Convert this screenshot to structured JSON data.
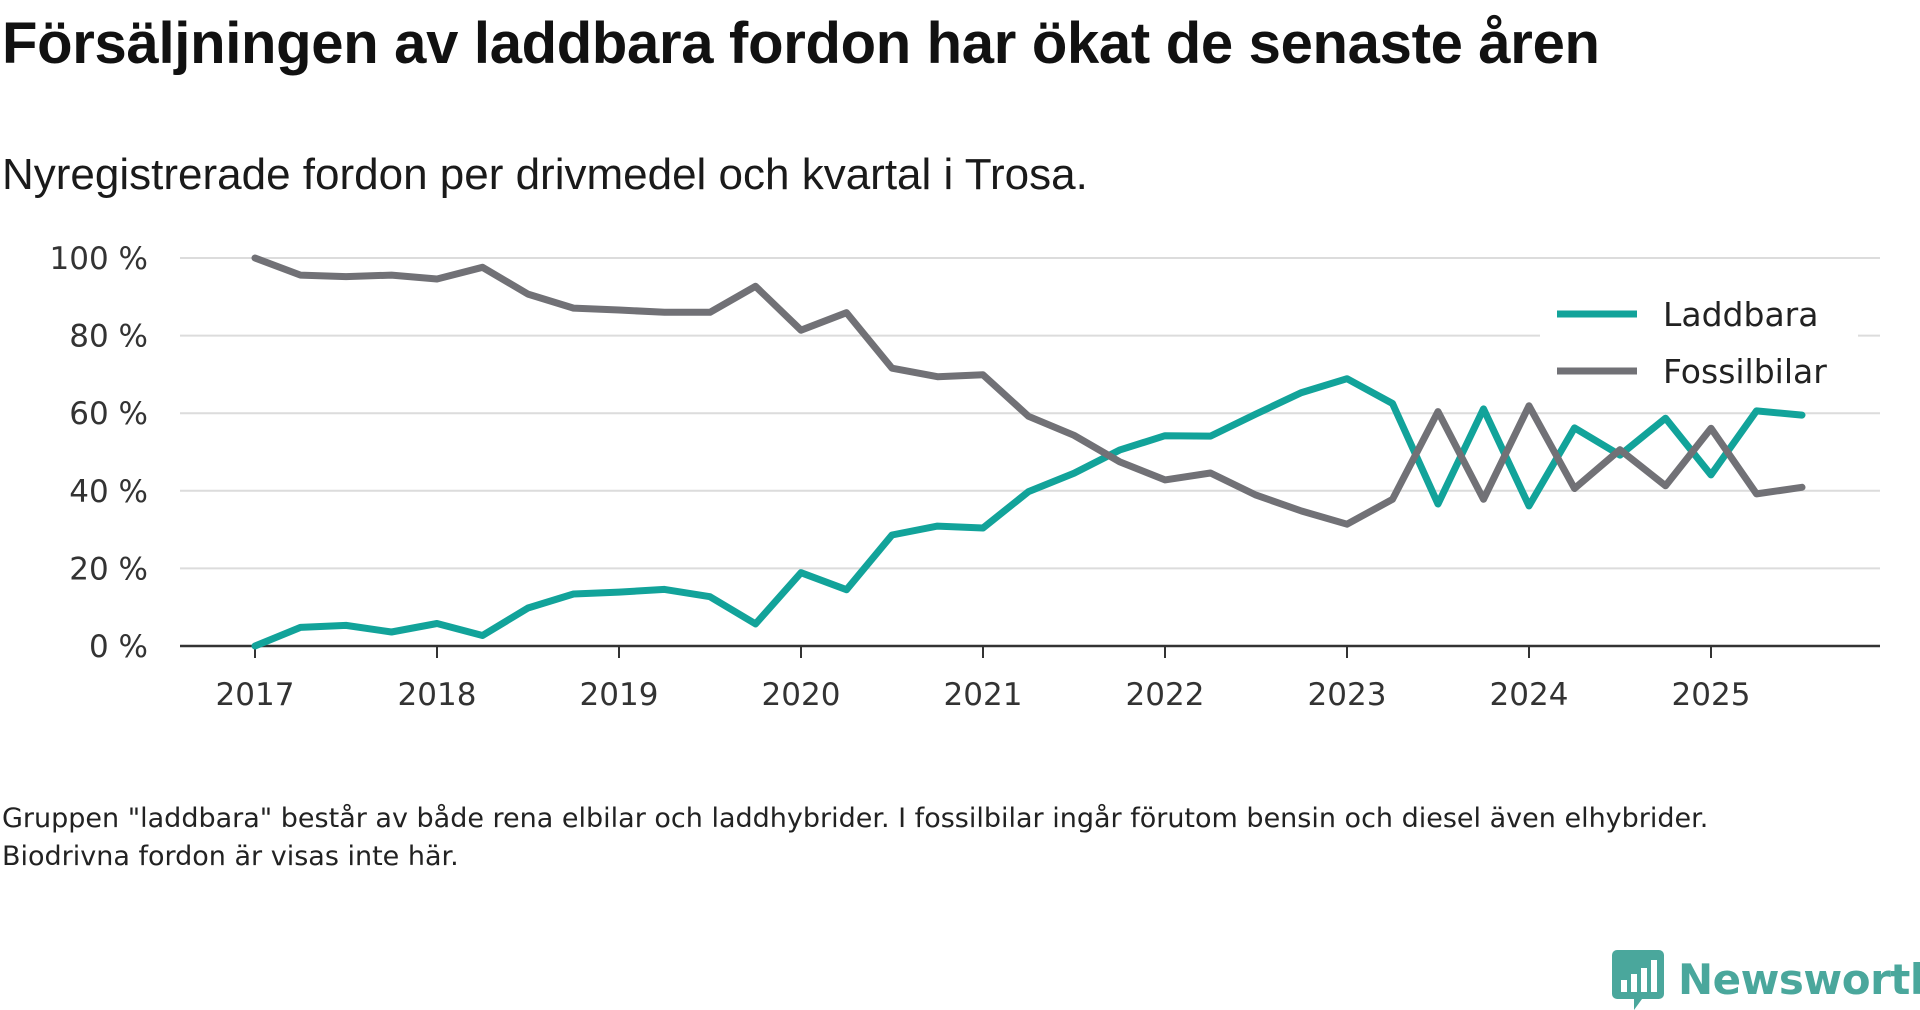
{
  "title": "Försäljningen av laddbara fordon har ökat de senaste åren",
  "subtitle": "Nyregistrerade fordon per drivmedel och kvartal i Trosa.",
  "footnote": "Gruppen \"laddbara\" består av både rena elbilar och laddhybrider. I fossilbilar ingår förutom bensin och diesel även elhybrider. Biodrivna fordon är visas inte här.",
  "brand": {
    "name": "Newsworthy",
    "icon": "newsworthy-logo-icon",
    "color": "#4aa79c"
  },
  "chart_data": {
    "type": "line",
    "title": "Försäljningen av laddbara fordon har ökat de senaste åren",
    "subtitle": "Nyregistrerade fordon per drivmedel och kvartal i Trosa.",
    "xlabel": "",
    "ylabel": "",
    "x_ticks": [
      "2017",
      "2018",
      "2019",
      "2020",
      "2021",
      "2022",
      "2023",
      "2024",
      "2025"
    ],
    "x_range": [
      2017.0,
      2025.5
    ],
    "y_ticks": [
      "0 %",
      "20 %",
      "40 %",
      "60 %",
      "80 %",
      "100 %"
    ],
    "y_tick_values": [
      0,
      20,
      40,
      60,
      80,
      100
    ],
    "ylim": [
      0,
      100
    ],
    "grid": true,
    "legend_position": "top-right",
    "x": [
      2017.0,
      2017.25,
      2017.5,
      2017.75,
      2018.0,
      2018.25,
      2018.5,
      2018.75,
      2019.0,
      2019.25,
      2019.5,
      2019.75,
      2020.0,
      2020.25,
      2020.5,
      2020.75,
      2021.0,
      2021.25,
      2021.5,
      2021.75,
      2022.0,
      2022.25,
      2022.5,
      2022.75,
      2023.0,
      2023.25,
      2023.5,
      2023.75,
      2024.0,
      2024.25,
      2024.5,
      2024.75,
      2025.0,
      2025.25,
      2025.5
    ],
    "series": [
      {
        "name": "Laddbara",
        "color": "#12a39a",
        "values": [
          0,
          4.8,
          5.3,
          3.6,
          5.8,
          2.7,
          9.8,
          13.4,
          13.9,
          14.6,
          12.7,
          5.7,
          18.9,
          14.5,
          28.6,
          30.9,
          30.4,
          39.8,
          44.5,
          50.5,
          54.2,
          54.1,
          59.8,
          65.3,
          68.9,
          62.5,
          36.6,
          61.1,
          36.1,
          56.2,
          49.2,
          58.7,
          44.1,
          60.6,
          59.5
        ]
      },
      {
        "name": "Fossilbilar",
        "color": "#717176",
        "values": [
          100,
          95.6,
          95.2,
          95.6,
          94.6,
          97.6,
          90.7,
          87.1,
          86.6,
          86.0,
          86.0,
          92.7,
          81.4,
          85.9,
          71.6,
          69.4,
          69.9,
          59.2,
          54.3,
          47.5,
          42.8,
          44.6,
          38.9,
          34.8,
          31.4,
          37.8,
          60.4,
          37.8,
          61.9,
          40.6,
          50.6,
          41.3,
          56.1,
          39.2,
          40.9
        ]
      }
    ]
  }
}
